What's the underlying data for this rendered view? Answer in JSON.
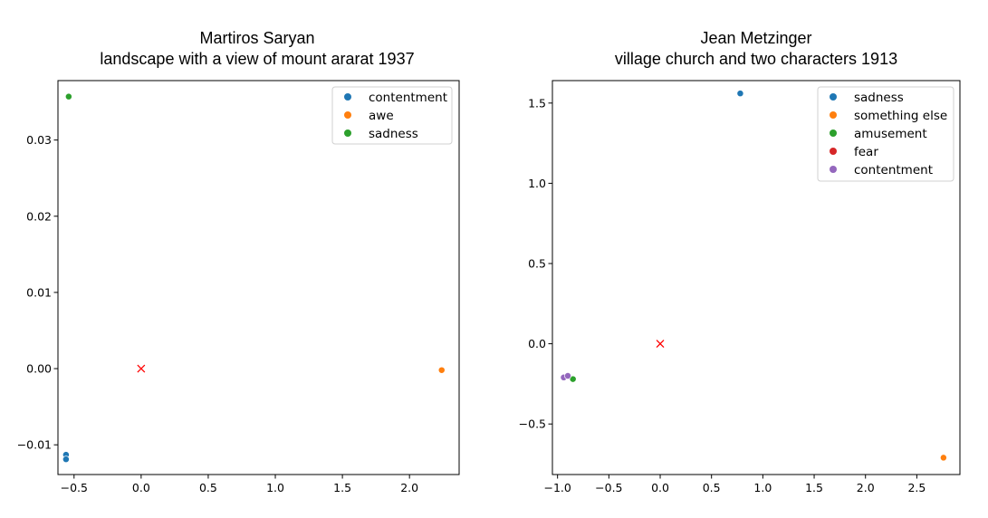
{
  "chart_data": [
    {
      "type": "scatter",
      "title_artist": "Martiros Saryan",
      "title_work": "landscape with a view of mount ararat 1937",
      "xlabel": "",
      "ylabel": "",
      "xlim": [
        -0.62,
        2.37
      ],
      "ylim": [
        -0.0139,
        0.0378
      ],
      "xticks": [
        -0.5,
        0.0,
        0.5,
        1.0,
        1.5,
        2.0
      ],
      "xtick_labels": [
        "−0.5",
        "0.0",
        "0.5",
        "1.0",
        "1.5",
        "2.0"
      ],
      "yticks": [
        -0.01,
        0.0,
        0.01,
        0.02,
        0.03
      ],
      "ytick_labels": [
        "−0.01",
        "0.00",
        "0.01",
        "0.02",
        "0.03"
      ],
      "legend_position": "top-right",
      "grid": false,
      "series": [
        {
          "name": "contentment",
          "color": "#1f77b4",
          "points": [
            [
              -0.56,
              -0.0113
            ],
            [
              -0.56,
              -0.0119
            ]
          ]
        },
        {
          "name": "awe",
          "color": "#ff7f0e",
          "points": [
            [
              2.24,
              -0.0002
            ]
          ]
        },
        {
          "name": "sadness",
          "color": "#2ca02c",
          "points": [
            [
              -0.54,
              0.0357
            ]
          ]
        }
      ],
      "origin_marker": {
        "x": 0.0,
        "y": 0.0,
        "symbol": "x",
        "color": "#ff0000"
      }
    },
    {
      "type": "scatter",
      "title_artist": "Jean Metzinger",
      "title_work": "village church and two characters 1913",
      "xlabel": "",
      "ylabel": "",
      "xlim": [
        -1.05,
        2.92
      ],
      "ylim": [
        -0.815,
        1.64
      ],
      "xticks": [
        -1.0,
        -0.5,
        0.0,
        0.5,
        1.0,
        1.5,
        2.0,
        2.5
      ],
      "xtick_labels": [
        "−1.0",
        "−0.5",
        "0.0",
        "0.5",
        "1.0",
        "1.5",
        "2.0",
        "2.5"
      ],
      "yticks": [
        -0.5,
        0.0,
        0.5,
        1.0,
        1.5
      ],
      "ytick_labels": [
        "−0.5",
        "0.0",
        "0.5",
        "1.0",
        "1.5"
      ],
      "legend_position": "top-right",
      "grid": false,
      "series": [
        {
          "name": "sadness",
          "color": "#1f77b4",
          "points": [
            [
              0.78,
              1.56
            ]
          ]
        },
        {
          "name": "something else",
          "color": "#ff7f0e",
          "points": [
            [
              2.76,
              -0.71
            ]
          ]
        },
        {
          "name": "amusement",
          "color": "#2ca02c",
          "points": [
            [
              -0.85,
              -0.22
            ]
          ]
        },
        {
          "name": "fear",
          "color": "#d62728",
          "points": []
        },
        {
          "name": "contentment",
          "color": "#9467bd",
          "points": [
            [
              -0.94,
              -0.21
            ],
            [
              -0.9,
              -0.2
            ]
          ]
        }
      ],
      "origin_marker": {
        "x": 0.0,
        "y": 0.0,
        "symbol": "x",
        "color": "#ff0000"
      }
    }
  ]
}
